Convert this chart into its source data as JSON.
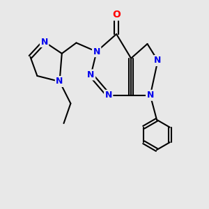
{
  "background_color": "#e8e8e8",
  "bond_color": "#000000",
  "N_color": "#0000ee",
  "O_color": "#ff0000",
  "bond_width": 1.5,
  "font_size_atom": 9,
  "figsize": [
    3.0,
    3.0
  ],
  "dpi": 100,
  "xlim": [
    0,
    10
  ],
  "ylim": [
    0,
    10
  ]
}
